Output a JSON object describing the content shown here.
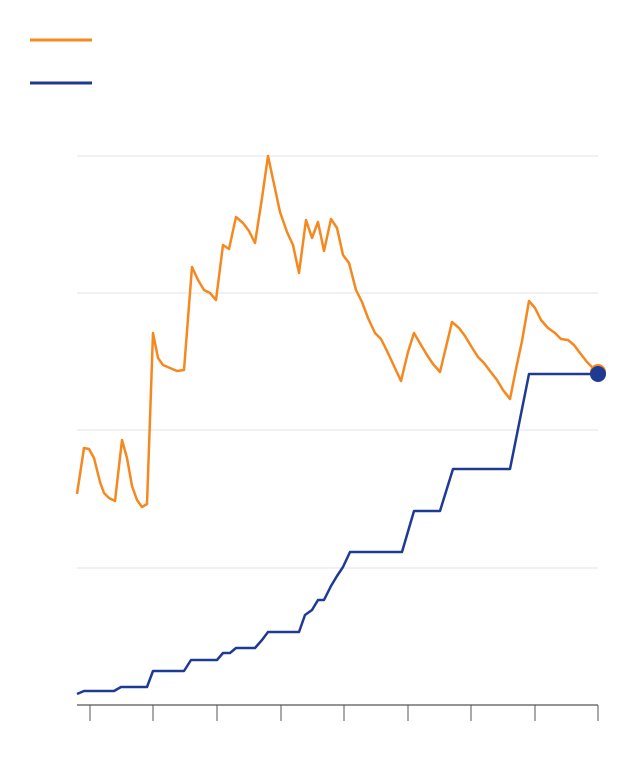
{
  "chart_data": {
    "type": "line",
    "xlim": [
      0,
      521
    ],
    "xticks": [
      13,
      76,
      140,
      204,
      267,
      331,
      394,
      458,
      521
    ],
    "ylim": [
      0,
      549
    ],
    "yticks": [
      137,
      275,
      412,
      549
    ],
    "grid": true,
    "legend": "top-left",
    "end_markers": true,
    "series": [
      {
        "color": "#f5881f",
        "x": [
          0,
          7,
          12,
          17,
          23,
          27,
          32,
          38,
          45,
          50,
          55,
          60,
          65,
          70,
          76,
          81,
          86,
          93,
          100,
          107,
          115,
          121,
          127,
          133,
          139,
          146,
          152,
          159,
          166,
          172,
          178,
          185,
          191,
          197,
          203,
          210,
          216,
          222,
          229,
          235,
          241,
          247,
          254,
          260,
          266,
          272,
          279,
          285,
          291,
          298,
          304,
          310,
          317,
          324,
          331,
          337,
          344,
          350,
          356,
          363,
          369,
          375,
          382,
          388,
          394,
          401,
          407,
          413,
          420,
          426,
          433,
          439,
          445,
          452,
          458,
          464,
          471,
          478,
          484,
          491,
          497,
          503,
          510,
          521
        ],
        "values": [
          211,
          257,
          256,
          247,
          223,
          212,
          207,
          204,
          265,
          247,
          219,
          205,
          198,
          201,
          372,
          347,
          340,
          337,
          334,
          335,
          438,
          425,
          415,
          412,
          405,
          460,
          456,
          488,
          482,
          474,
          462,
          507,
          549,
          521,
          493,
          473,
          460,
          432,
          485,
          467,
          483,
          454,
          486,
          477,
          450,
          442,
          415,
          403,
          387,
          372,
          366,
          354,
          339,
          324,
          353,
          372,
          360,
          350,
          341,
          333,
          358,
          383,
          377,
          369,
          359,
          348,
          342,
          334,
          325,
          315,
          306,
          336,
          364,
          404,
          397,
          385,
          377,
          372,
          366,
          365,
          360,
          352,
          343,
          332
        ]
      },
      {
        "color": "#1f3a93",
        "x": [
          0,
          7,
          37,
          44,
          70,
          76,
          107,
          114,
          140,
          146,
          153,
          159,
          178,
          185,
          191,
          222,
          228,
          235,
          241,
          247,
          254,
          260,
          266,
          273,
          325,
          337,
          363,
          376,
          433,
          452,
          521
        ],
        "values": [
          11,
          14,
          14,
          18,
          18,
          34,
          34,
          45,
          45,
          52,
          52,
          57,
          57,
          65,
          73,
          73,
          90,
          95,
          105,
          105,
          119,
          129,
          138,
          153,
          153,
          194,
          194,
          236,
          236,
          331,
          331
        ]
      }
    ]
  }
}
